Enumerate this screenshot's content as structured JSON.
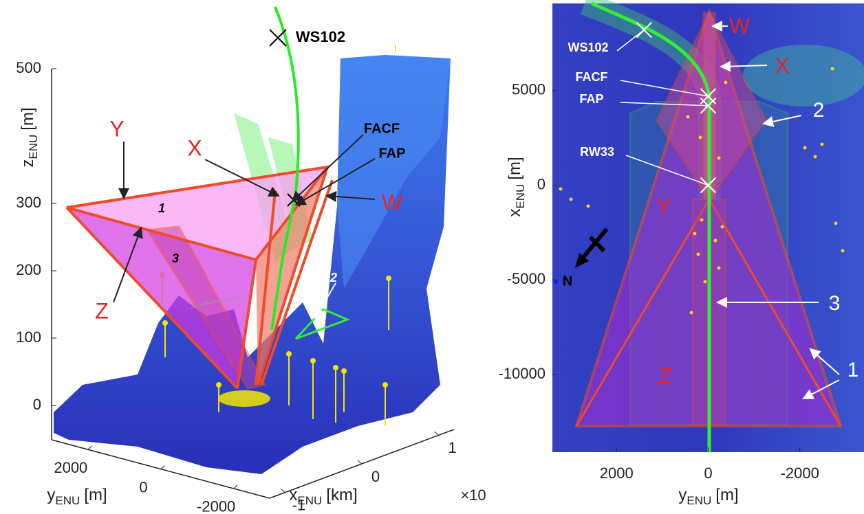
{
  "chart_data": [
    {
      "type": "surface3d",
      "z_label": {
        "main": "z",
        "sub": "ENU",
        "unit": "[m]"
      },
      "y_label": {
        "main": "y",
        "sub": "ENU",
        "unit": "[m]"
      },
      "x_label": {
        "main": "x",
        "sub": "ENU",
        "unit": "[km]"
      },
      "x_exponent": "×10",
      "zlim": [
        -50,
        500
      ],
      "zticks": [
        0,
        100,
        200,
        300,
        500
      ],
      "ylim": [
        3000,
        -3000
      ],
      "yticks": [
        2000,
        0,
        -2000
      ],
      "xlim": [
        -1.2,
        1.2
      ],
      "xticks": [
        -1,
        0,
        1
      ],
      "annotations": [
        "WS102",
        "FACF",
        "FAP",
        "X",
        "Y",
        "Z",
        "W",
        "1",
        "2",
        "3"
      ]
    },
    {
      "type": "scatter",
      "x_label": {
        "main": "y",
        "sub": "ENU",
        "unit": "[m]"
      },
      "y_label": {
        "main": "x",
        "sub": "ENU",
        "unit": "[m]"
      },
      "xlim": [
        3400,
        -3400
      ],
      "xticks": [
        2000,
        0,
        -2000
      ],
      "ylim": [
        -14100,
        9600
      ],
      "yticks": [
        5000,
        0,
        -5000,
        -10000
      ],
      "labels": [
        "WS102",
        "FACF",
        "FAP",
        "RW33"
      ],
      "x": [
        1400,
        0,
        0,
        0
      ],
      "y": [
        8200,
        4700,
        4200,
        0
      ],
      "annotations": [
        "W",
        "X",
        "Y",
        "Z",
        "1",
        "2",
        "3",
        "N"
      ]
    }
  ]
}
